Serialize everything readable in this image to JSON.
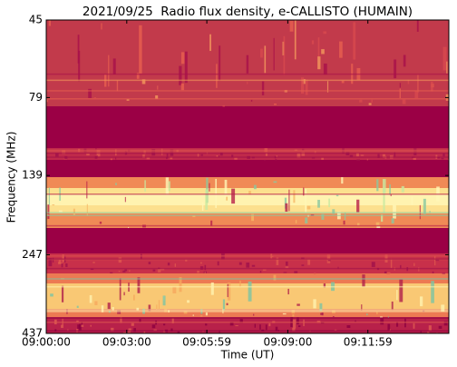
{
  "chart_data": {
    "type": "spectrogram",
    "title": "2021/09/25  Radio flux density, e-CALLISTO (HUMAIN)",
    "x_label": "Time (UT)",
    "y_label": "Frequency (MHz)",
    "xlim": [
      32400,
      33300
    ],
    "xticks": [
      {
        "value": 32400,
        "label": "09:00:00"
      },
      {
        "value": 32580,
        "label": "09:03:00"
      },
      {
        "value": 32759,
        "label": "09:05:59"
      },
      {
        "value": 32940,
        "label": "09:09:00"
      },
      {
        "value": 33119,
        "label": "09:11:59"
      }
    ],
    "ylim": [
      45,
      437
    ],
    "y_log": true,
    "y_inverted": true,
    "yticks": [
      45,
      79,
      139,
      247,
      437
    ]
  }
}
